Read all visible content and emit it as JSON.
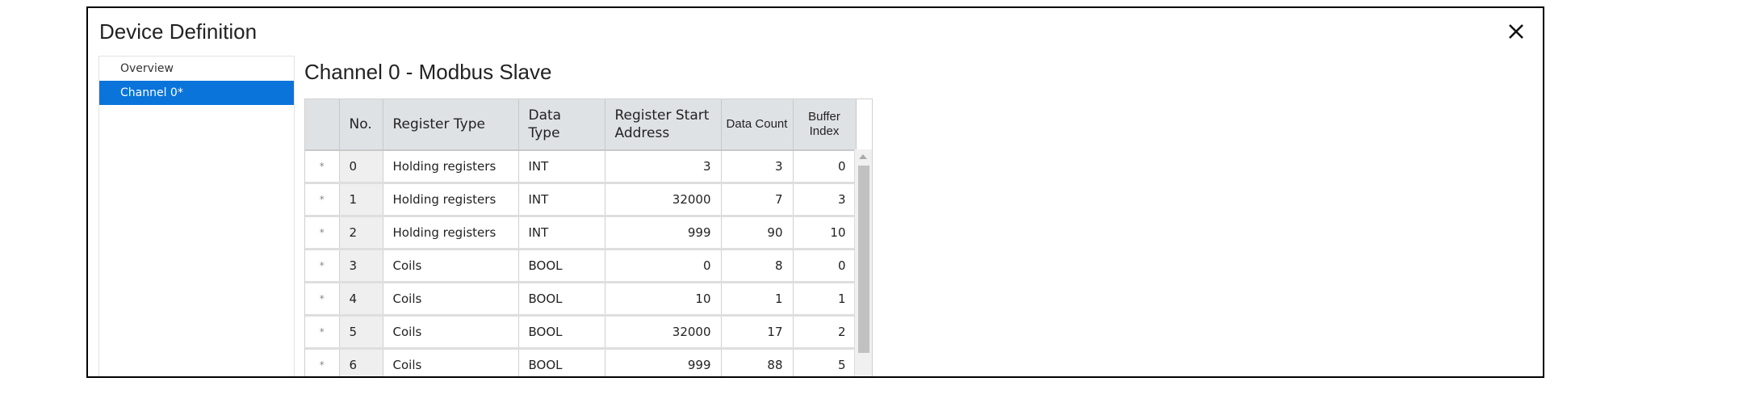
{
  "dialog": {
    "title": "Device Definition",
    "close_icon": "close-icon"
  },
  "sidebar": {
    "items": [
      {
        "label": "Overview",
        "active": false
      },
      {
        "label": "Channel 0*",
        "active": true
      }
    ]
  },
  "main": {
    "heading": "Channel 0 - Modbus Slave",
    "table": {
      "columns": [
        "",
        "No.",
        "Register Type",
        "Data Type",
        "Register Start Address",
        "Data Count",
        "Buffer Index"
      ],
      "rows": [
        {
          "marker": "*",
          "no": "0",
          "register_type": "Holding registers",
          "data_type": "INT",
          "start": "3",
          "count": "3",
          "buffer": "0"
        },
        {
          "marker": "*",
          "no": "1",
          "register_type": "Holding registers",
          "data_type": "INT",
          "start": "32000",
          "count": "7",
          "buffer": "3"
        },
        {
          "marker": "*",
          "no": "2",
          "register_type": "Holding registers",
          "data_type": "INT",
          "start": "999",
          "count": "90",
          "buffer": "10"
        },
        {
          "marker": "*",
          "no": "3",
          "register_type": "Coils",
          "data_type": "BOOL",
          "start": "0",
          "count": "8",
          "buffer": "0"
        },
        {
          "marker": "*",
          "no": "4",
          "register_type": "Coils",
          "data_type": "BOOL",
          "start": "10",
          "count": "1",
          "buffer": "1"
        },
        {
          "marker": "*",
          "no": "5",
          "register_type": "Coils",
          "data_type": "BOOL",
          "start": "32000",
          "count": "17",
          "buffer": "2"
        },
        {
          "marker": "*",
          "no": "6",
          "register_type": "Coils",
          "data_type": "BOOL",
          "start": "999",
          "count": "88",
          "buffer": "5"
        }
      ]
    }
  },
  "colors": {
    "accent": "#0a74da",
    "header_bg": "#dfe2e5"
  }
}
